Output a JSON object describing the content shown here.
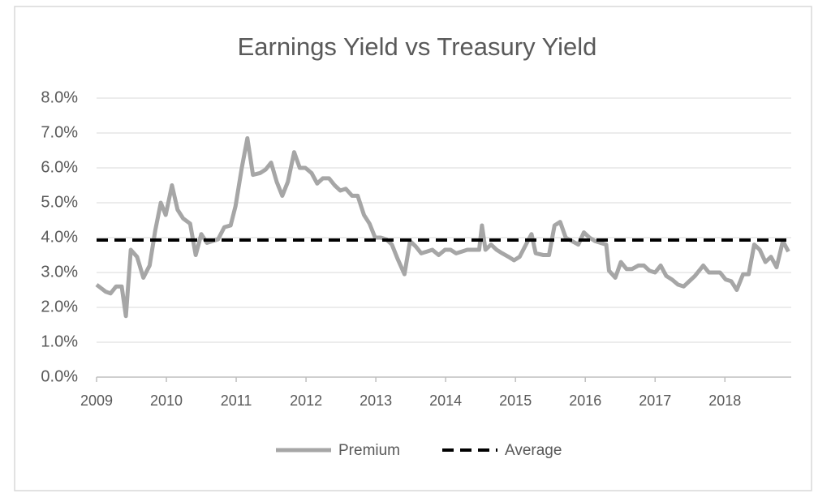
{
  "chart_data": {
    "type": "line",
    "title": "Earnings Yield vs Treasury Yield",
    "x": [
      2009.0,
      2009.13,
      2009.2,
      2009.28,
      2009.36,
      2009.42,
      2009.49,
      2009.58,
      2009.67,
      2009.76,
      2009.84,
      2009.92,
      2009.99,
      2010.08,
      2010.16,
      2010.24,
      2010.34,
      2010.42,
      2010.5,
      2010.58,
      2010.66,
      2010.74,
      2010.83,
      2010.92,
      2010.99,
      2011.08,
      2011.16,
      2011.24,
      2011.34,
      2011.42,
      2011.5,
      2011.58,
      2011.66,
      2011.74,
      2011.83,
      2011.91,
      2011.99,
      2012.08,
      2012.16,
      2012.24,
      2012.33,
      2012.41,
      2012.49,
      2012.57,
      2012.66,
      2012.74,
      2012.83,
      2012.91,
      2012.99,
      2013.07,
      2013.15,
      2013.23,
      2013.31,
      2013.41,
      2013.49,
      2013.57,
      2013.65,
      2013.73,
      2013.81,
      2013.9,
      2013.99,
      2014.07,
      2014.15,
      2014.23,
      2014.31,
      2014.4,
      2014.48,
      2014.52,
      2014.57,
      2014.65,
      2014.73,
      2014.81,
      2014.9,
      2014.98,
      2015.06,
      2015.15,
      2015.23,
      2015.29,
      2015.4,
      2015.48,
      2015.56,
      2015.64,
      2015.72,
      2015.81,
      2015.9,
      2015.98,
      2016.06,
      2016.14,
      2016.22,
      2016.3,
      2016.34,
      2016.43,
      2016.51,
      2016.59,
      2016.67,
      2016.76,
      2016.84,
      2016.92,
      2017.0,
      2017.08,
      2017.16,
      2017.24,
      2017.33,
      2017.41,
      2017.49,
      2017.57,
      2017.69,
      2017.77,
      2017.85,
      2017.93,
      2018.01,
      2018.09,
      2018.17,
      2018.26,
      2018.34,
      2018.42,
      2018.5,
      2018.58,
      2018.66,
      2018.74,
      2018.83,
      2018.91
    ],
    "series": [
      {
        "name": "Premium",
        "color": "#a6a6a6",
        "values": [
          2.65,
          2.45,
          2.4,
          2.6,
          2.6,
          1.75,
          3.65,
          3.45,
          2.85,
          3.2,
          4.2,
          5.0,
          4.65,
          5.5,
          4.8,
          4.55,
          4.4,
          3.5,
          4.1,
          3.85,
          3.9,
          3.95,
          4.3,
          4.35,
          4.9,
          6.0,
          6.85,
          5.8,
          5.85,
          5.95,
          6.15,
          5.6,
          5.2,
          5.6,
          6.45,
          6.0,
          6.0,
          5.85,
          5.55,
          5.7,
          5.7,
          5.5,
          5.35,
          5.4,
          5.2,
          5.2,
          4.65,
          4.4,
          4.0,
          4.0,
          3.95,
          3.8,
          3.4,
          2.95,
          3.9,
          3.75,
          3.55,
          3.6,
          3.65,
          3.5,
          3.65,
          3.65,
          3.55,
          3.6,
          3.65,
          3.65,
          3.65,
          4.35,
          3.65,
          3.8,
          3.65,
          3.55,
          3.45,
          3.35,
          3.45,
          3.8,
          4.1,
          3.55,
          3.5,
          3.5,
          4.35,
          4.45,
          4.0,
          3.9,
          3.8,
          4.15,
          4.0,
          3.9,
          3.85,
          3.8,
          3.05,
          2.85,
          3.3,
          3.1,
          3.1,
          3.2,
          3.2,
          3.05,
          3.0,
          3.2,
          2.9,
          2.8,
          2.65,
          2.6,
          2.75,
          2.9,
          3.2,
          3.0,
          3.0,
          3.0,
          2.8,
          2.75,
          2.5,
          2.95,
          2.95,
          3.8,
          3.65,
          3.3,
          3.45,
          3.15,
          3.9,
          3.6
        ]
      },
      {
        "name": "Average",
        "color": "#000000",
        "dashed": true,
        "values": [
          3.93,
          3.93,
          3.93,
          3.93,
          3.93,
          3.93,
          3.93,
          3.93,
          3.93,
          3.93,
          3.93,
          3.93,
          3.93,
          3.93,
          3.93,
          3.93,
          3.93,
          3.93,
          3.93,
          3.93,
          3.93,
          3.93,
          3.93,
          3.93,
          3.93,
          3.93,
          3.93,
          3.93,
          3.93,
          3.93,
          3.93,
          3.93,
          3.93,
          3.93,
          3.93,
          3.93,
          3.93,
          3.93,
          3.93,
          3.93,
          3.93,
          3.93,
          3.93,
          3.93,
          3.93,
          3.93,
          3.93,
          3.93,
          3.93,
          3.93,
          3.93,
          3.93,
          3.93,
          3.93,
          3.93,
          3.93,
          3.93,
          3.93,
          3.93,
          3.93,
          3.93,
          3.93,
          3.93,
          3.93,
          3.93,
          3.93,
          3.93,
          3.93,
          3.93,
          3.93,
          3.93,
          3.93,
          3.93,
          3.93,
          3.93,
          3.93,
          3.93,
          3.93,
          3.93,
          3.93,
          3.93,
          3.93,
          3.93,
          3.93,
          3.93,
          3.93,
          3.93,
          3.93,
          3.93,
          3.93,
          3.93,
          3.93,
          3.93,
          3.93,
          3.93,
          3.93,
          3.93,
          3.93,
          3.93,
          3.93,
          3.93,
          3.93,
          3.93,
          3.93,
          3.93,
          3.93,
          3.93,
          3.93,
          3.93,
          3.93,
          3.93,
          3.93,
          3.93,
          3.93,
          3.93,
          3.93,
          3.93,
          3.93,
          3.93,
          3.93,
          3.93,
          3.93
        ]
      }
    ],
    "xlim": [
      2009,
      2018.95
    ],
    "xticks": [
      2009,
      2010,
      2011,
      2012,
      2013,
      2014,
      2015,
      2016,
      2017,
      2018
    ],
    "ylim": [
      0,
      8
    ],
    "yticks": [
      {
        "value": 0,
        "label": "0.0%"
      },
      {
        "value": 1,
        "label": "1.0%"
      },
      {
        "value": 2,
        "label": "2.0%"
      },
      {
        "value": 3,
        "label": "3.0%"
      },
      {
        "value": 4,
        "label": "4.0%"
      },
      {
        "value": 5,
        "label": "5.0%"
      },
      {
        "value": 6,
        "label": "6.0%"
      },
      {
        "value": 7,
        "label": "7.0%"
      },
      {
        "value": 8,
        "label": "8.0%"
      }
    ],
    "grid": true,
    "legend": "bottom"
  }
}
